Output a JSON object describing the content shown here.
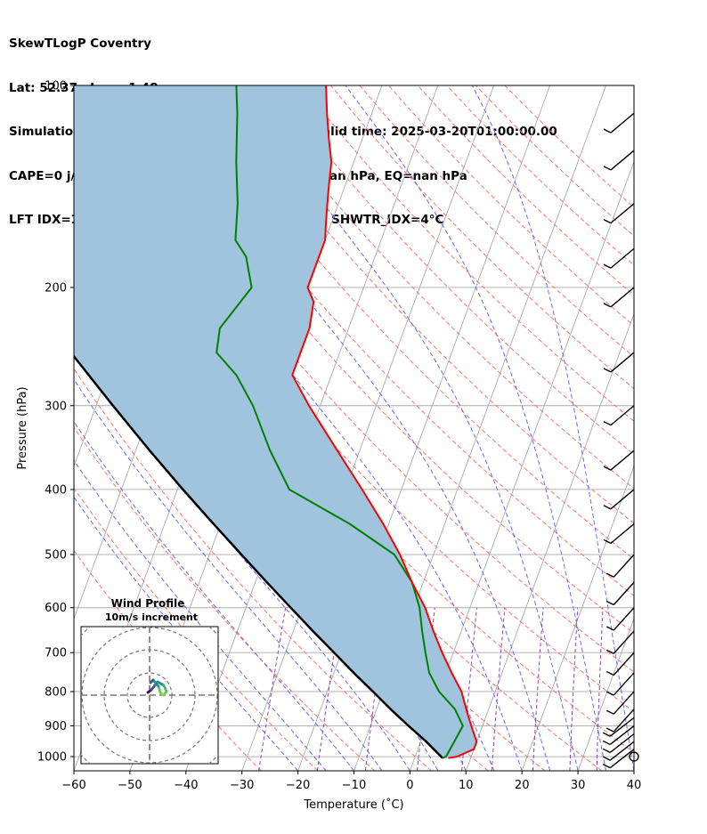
{
  "header": {
    "line1": "SkewTLogP Coventry",
    "line2": "Lat: 52.37   Lon: -1.48",
    "line3": "Simulation start time: 2025-03-18_00:00:00, Valid time: 2025-03-20T01:00:00.00",
    "line4": "CAPE=0 j/kg, CIN=0 j/kg, LCL=1005 hPa, LFC=nan hPa, EQ=nan hPa",
    "line5": "LFT IDX=13°C, K IDX=24°C, TOTAL TOTS=49°C, SHWTR_IDX=4°C"
  },
  "colors": {
    "temperature": "#ff0000",
    "dewpoint": "#008000",
    "parcel": "#000000",
    "shade": "#a0c4de",
    "dry_adiabats": "#ff7070",
    "moist_adiabats": "#6a6aff",
    "mixing_ratio": "#9040c0",
    "isotherms": "#aaaaaa",
    "isobars": "#aaaaaa"
  },
  "chart_data": {
    "type": "line",
    "subtype": "skew-t log-p diagram",
    "xlabel": "Temperature (˚C)",
    "ylabel": "Pressure (hPa)",
    "xlim": [
      -60,
      40
    ],
    "ylim": [
      1050,
      100
    ],
    "y_scale": "log",
    "grid": true,
    "x_ticks": [
      -60,
      -50,
      -40,
      -30,
      -20,
      -10,
      0,
      10,
      20,
      30,
      40
    ],
    "x_tick_labels": [
      "−60",
      "−50",
      "−40",
      "−30",
      "−20",
      "−10",
      "0",
      "10",
      "20",
      "30",
      "40"
    ],
    "y_ticks": [
      1000,
      900,
      800,
      700,
      600,
      500,
      400,
      300,
      200,
      100
    ],
    "y_tick_labels": [
      "1000",
      "900",
      "800",
      "700",
      "600",
      "500",
      "400",
      "300",
      "200",
      "100"
    ],
    "series": [
      {
        "role": "temperature",
        "pressure": [
          1005,
          1000,
          975,
          950,
          925,
          900,
          850,
          800,
          750,
          700,
          650,
          600,
          550,
          500,
          450,
          400,
          350,
          300,
          270,
          250,
          230,
          210,
          200,
          185,
          170,
          160,
          150,
          140,
          130,
          120,
          110,
          100
        ],
        "temperature": [
          6,
          7.5,
          10,
          10,
          9,
          8,
          6,
          4,
          1,
          -2,
          -5,
          -8,
          -12,
          -16,
          -21,
          -27,
          -34,
          -42,
          -47,
          -47,
          -47,
          -48,
          -50,
          -50,
          -50,
          -51,
          -52,
          -53,
          -54,
          -56,
          -58,
          -60
        ]
      },
      {
        "role": "dewpoint",
        "pressure": [
          1005,
          1000,
          950,
          900,
          850,
          800,
          750,
          700,
          650,
          600,
          550,
          500,
          450,
          400,
          350,
          300,
          270,
          250,
          230,
          200,
          180,
          170,
          150,
          130,
          110,
          100
        ],
        "temperature": [
          5,
          5.5,
          6,
          6.5,
          4,
          0,
          -3,
          -5,
          -7,
          -9,
          -12,
          -17,
          -27,
          -40,
          -46,
          -52,
          -57,
          -62,
          -63,
          -60,
          -63,
          -66,
          -68,
          -71,
          -74,
          -76
        ]
      },
      {
        "role": "parcel",
        "pressure": [
          1005,
          950,
          900,
          850,
          800,
          750,
          700,
          650,
          600,
          550,
          500,
          450,
          400,
          350,
          300,
          250,
          200,
          150,
          100
        ],
        "temperature": [
          5,
          1,
          -3.2,
          -7.5,
          -11.8,
          -16.5,
          -21.3,
          -26.5,
          -32,
          -37.9,
          -44.3,
          -51.3,
          -59,
          -67.5,
          -77,
          -88,
          -101,
          -117,
          -138
        ]
      }
    ],
    "wind_barb_pressures": [
      1000,
      975,
      950,
      925,
      900,
      875,
      850,
      800,
      750,
      700,
      650,
      600,
      550,
      500,
      450,
      400,
      350,
      300,
      250,
      200,
      175,
      150,
      125,
      110
    ],
    "inset": {
      "title": "Wind Profile",
      "subtitle": "10m/s increment"
    }
  }
}
